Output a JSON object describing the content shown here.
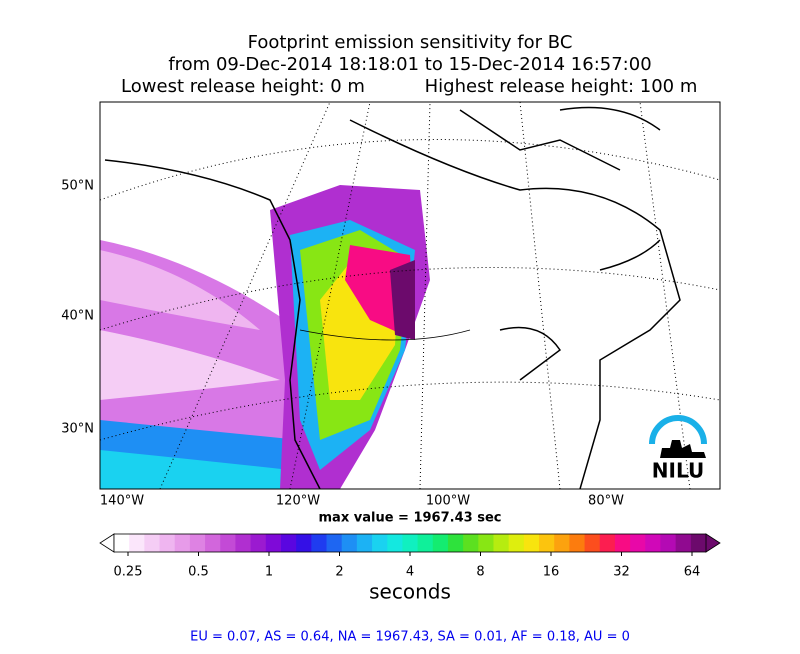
{
  "header": {
    "title_lines": [
      "Footprint emission sensitivity for BC",
      "from 09-Dec-2014 18:18:01 to 15-Dec-2014 16:57:00"
    ],
    "lowest_release": "Lowest release height: 0 m",
    "highest_release": "Highest release height: 100 m"
  },
  "map": {
    "lat_labels": [
      "50°N",
      "40°N",
      "30°N"
    ],
    "lon_labels": [
      "140°W",
      "120°W",
      "100°W",
      "80°W"
    ],
    "max_value": "max value = 1967.43 sec",
    "logo": "NILU"
  },
  "colorbar": {
    "ticks": [
      0.25,
      0.5,
      1,
      2,
      4,
      8,
      16,
      32,
      64
    ],
    "label": "seconds",
    "log_scale": true,
    "colors": [
      "#ffffff",
      "#fbe6fb",
      "#f5cdf5",
      "#efb5f0",
      "#e79be9",
      "#de82e3",
      "#d266dc",
      "#c34ad6",
      "#b02fd0",
      "#9b1ad0",
      "#7f0ad8",
      "#5a06e0",
      "#3410e6",
      "#1f3cf0",
      "#1e66f2",
      "#1e8ff4",
      "#1cb2f4",
      "#1ad2f0",
      "#14e8e0",
      "#10f0c0",
      "#0ff09a",
      "#14ec70",
      "#2ee23c",
      "#5ce020",
      "#88e614",
      "#b6ec10",
      "#deee0e",
      "#f8e40e",
      "#fcc40e",
      "#fca20e",
      "#fc7c0e",
      "#fc4e1e",
      "#fc1e50",
      "#f80c84",
      "#e808a8",
      "#d008b8",
      "#b40ab4",
      "#900a90",
      "#6c0a6c"
    ]
  },
  "footer": "EU = 0.07,  AS = 0.64,  NA = 1967.43,  SA = 0.01,  AF = 0.18,  AU = 0"
}
